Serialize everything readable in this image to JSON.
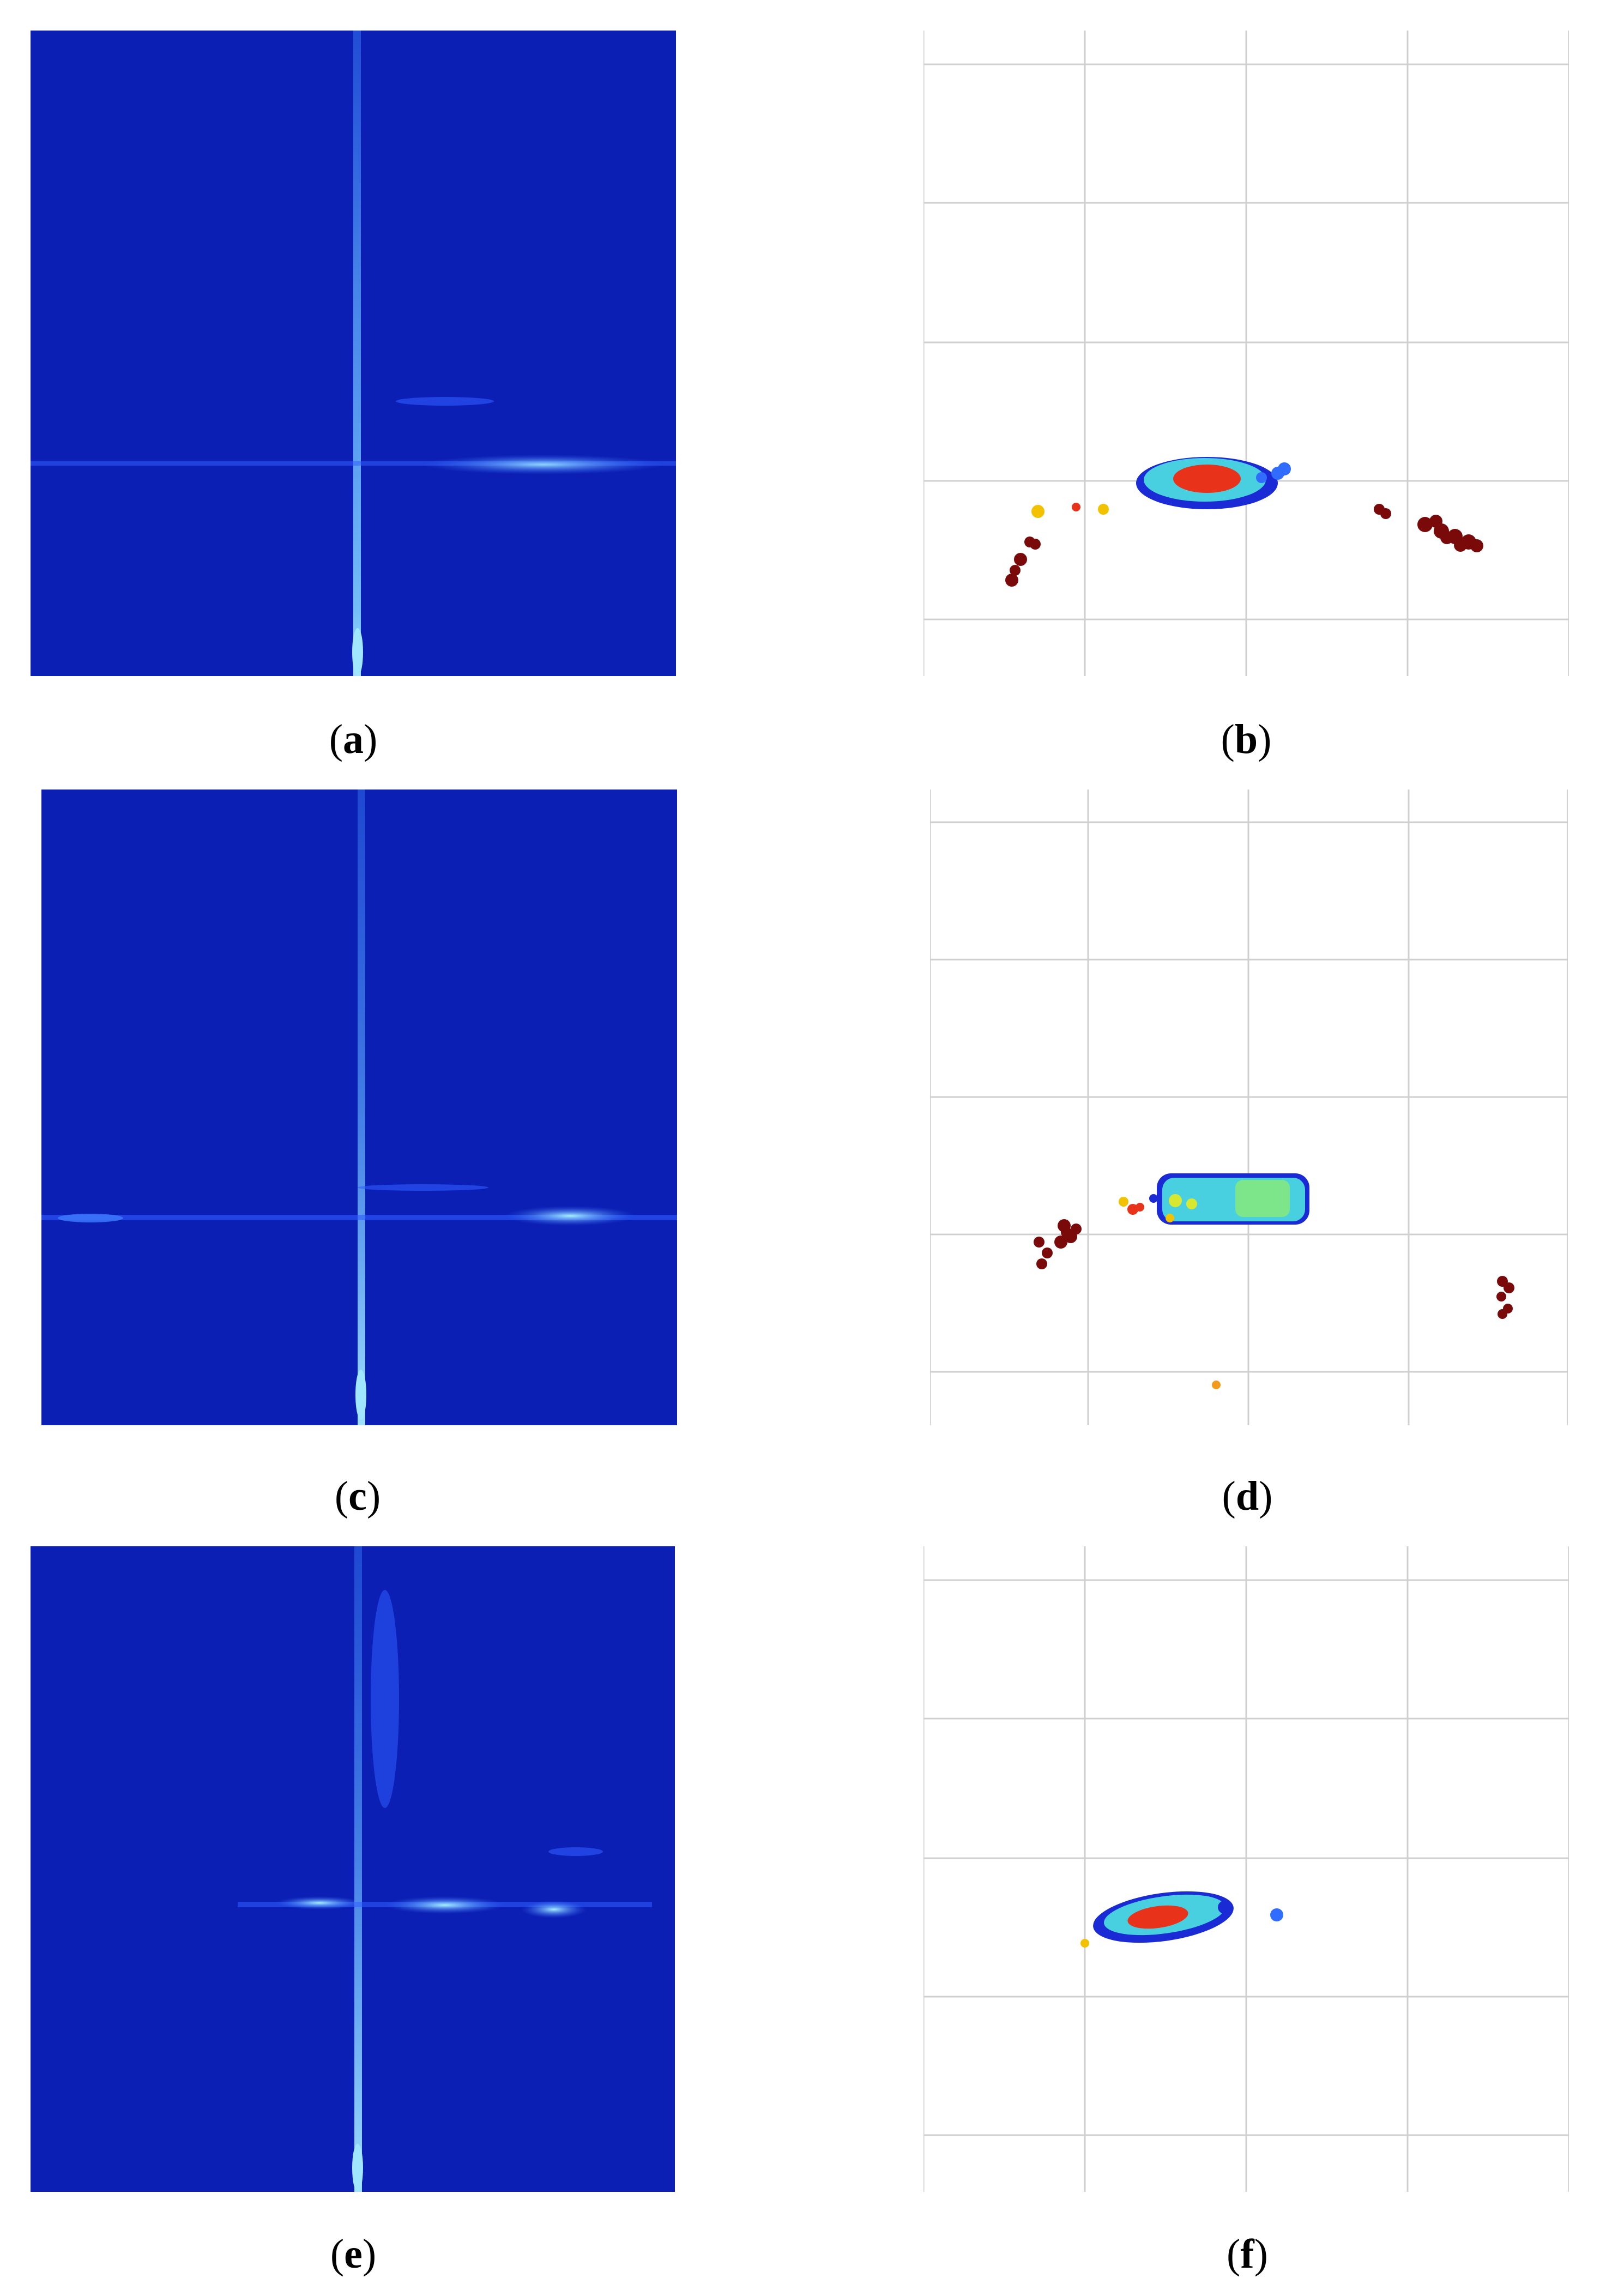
{
  "figure": {
    "panels": [
      {
        "id": "a",
        "type": "heatmap",
        "caption_letter": "a"
      },
      {
        "id": "b",
        "type": "point-cloud",
        "caption_letter": "b"
      },
      {
        "id": "c",
        "type": "heatmap",
        "caption_letter": "c"
      },
      {
        "id": "d",
        "type": "point-cloud",
        "caption_letter": "d"
      },
      {
        "id": "e",
        "type": "heatmap",
        "caption_letter": "e"
      },
      {
        "id": "f",
        "type": "point-cloud",
        "caption_letter": "f"
      }
    ]
  },
  "colors": {
    "heatmap_background": "#0c1fb4",
    "heatmap_highlight": "#3aa6ff",
    "grid": "#d0d0d0",
    "cluster_low": "#1a2bd6",
    "cluster_mid": "#48d0e0",
    "cluster_high": "#e8321a",
    "outlier": "#7a0a0a",
    "outlier_warm": "#f2c200"
  },
  "chart_data": [
    {
      "type": "heatmap",
      "panel": "a",
      "grid": false
    },
    {
      "type": "scatter",
      "panel": "b",
      "grid": true
    },
    {
      "type": "heatmap",
      "panel": "c",
      "grid": false
    },
    {
      "type": "scatter",
      "panel": "d",
      "grid": true
    },
    {
      "type": "heatmap",
      "panel": "e",
      "grid": false
    },
    {
      "type": "scatter",
      "panel": "f",
      "grid": true
    }
  ]
}
